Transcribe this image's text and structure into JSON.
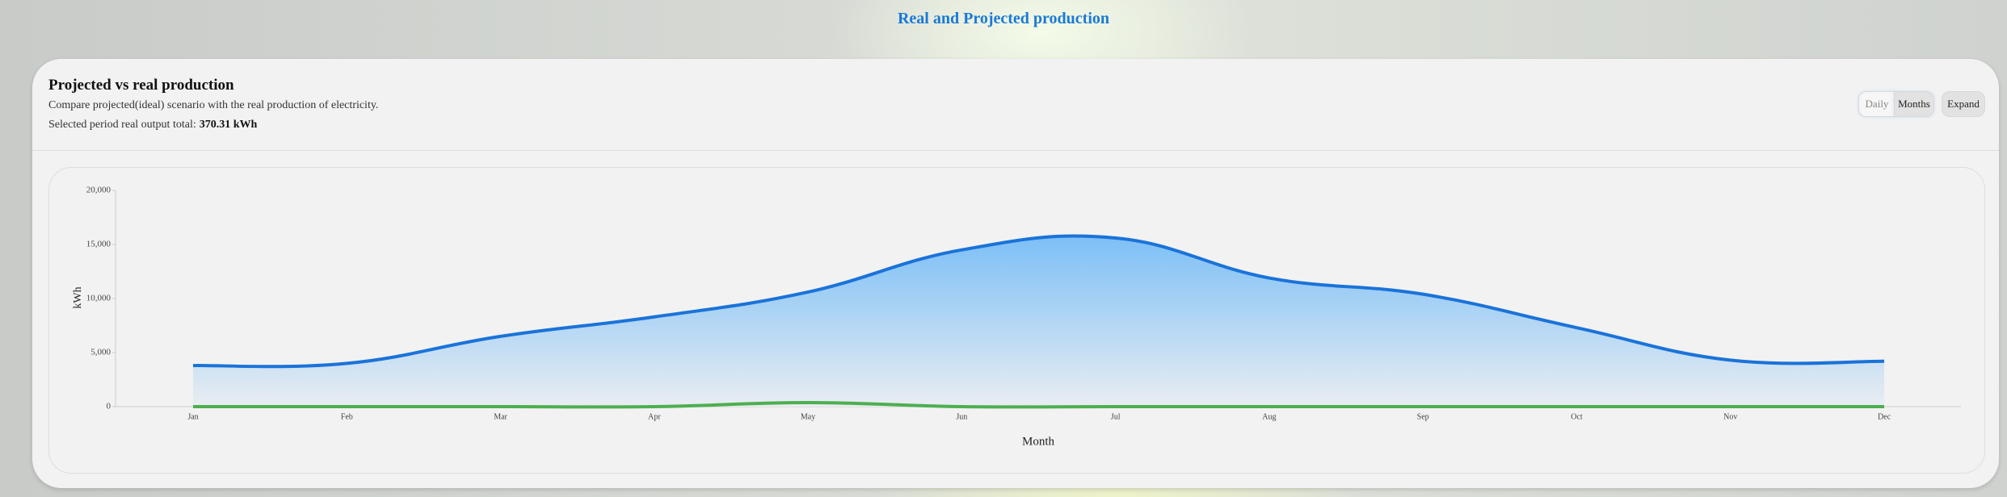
{
  "header": {
    "title": "Real and Projected production"
  },
  "card": {
    "title": "Projected vs real production",
    "subtitle": "Compare projected(ideal) scenario with the real production of electricity.",
    "total_label": "Selected period real output total:",
    "total_value": "370.31 kWh",
    "buttons": [
      "Daily",
      "Months",
      "Expand"
    ]
  },
  "chart_data": {
    "type": "area",
    "categories": [
      "Jan",
      "Feb",
      "Mar",
      "Apr",
      "May",
      "Jun",
      "Jul",
      "Aug",
      "Sep",
      "Oct",
      "Nov",
      "Dec"
    ],
    "series": [
      {
        "color": "#1a73d9",
        "values": [
          3800,
          4000,
          6500,
          8300,
          10600,
          14500,
          15600,
          11900,
          10400,
          7300,
          4300,
          4200
        ]
      },
      {
        "color": "#4caf50",
        "values": [
          0,
          0,
          0,
          0,
          370,
          0,
          0,
          0,
          0,
          0,
          0,
          0
        ]
      }
    ],
    "ylim": [
      0,
      20000
    ],
    "yticks": [
      0,
      {
        "value": 5000,
        "label": "5,000"
      },
      {
        "value": 10000,
        "label": "10,000"
      },
      {
        "value": 15000,
        "label": "15,000"
      },
      {
        "value": 20000,
        "label": "20,000"
      }
    ],
    "xlabel": "Month",
    "ylabel": "kWh"
  }
}
